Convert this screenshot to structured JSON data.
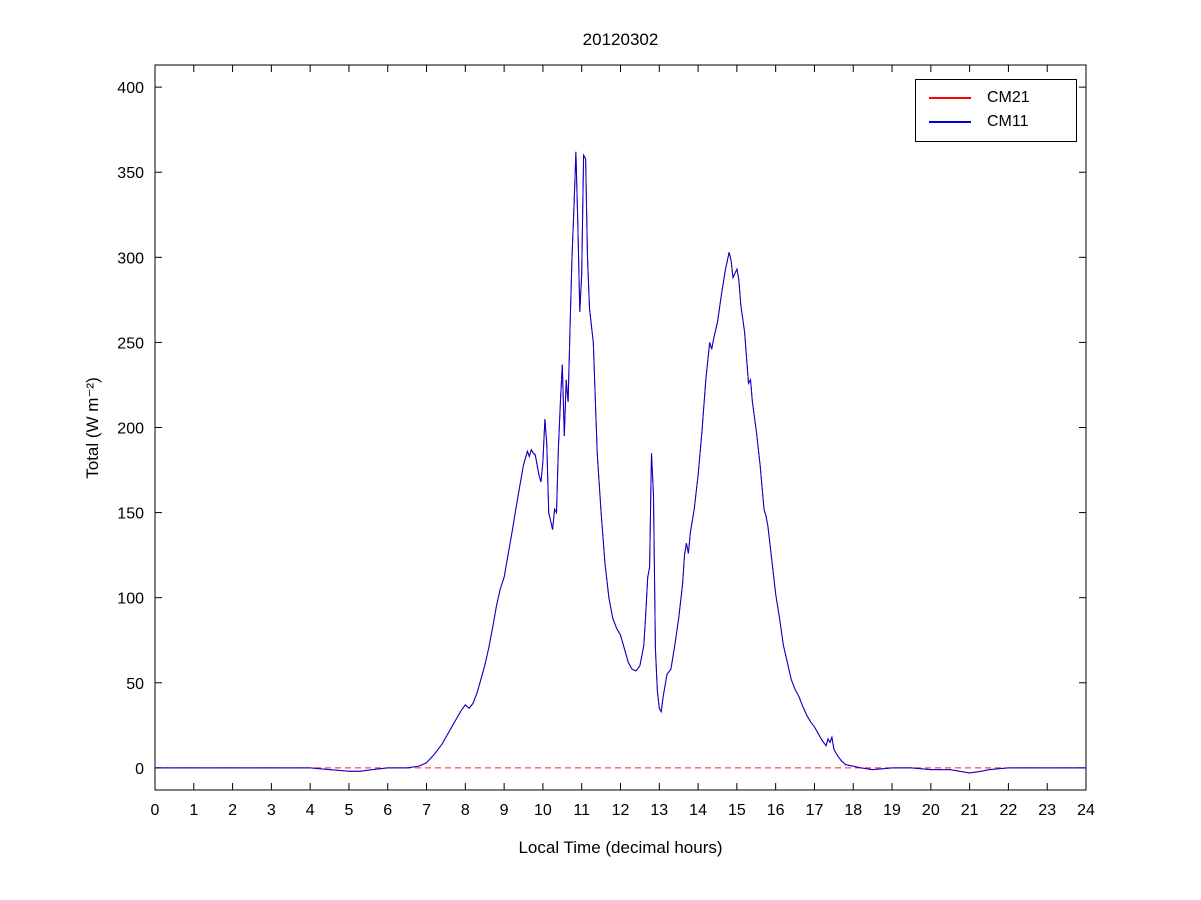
{
  "chart_data": {
    "type": "line",
    "title": "20120302",
    "xlabel": "Local Time (decimal hours)",
    "ylabel": "Total (W m⁻²)",
    "xlim": [
      0,
      24
    ],
    "ylim": [
      -13,
      413
    ],
    "xticks": [
      0,
      1,
      2,
      3,
      4,
      5,
      6,
      7,
      8,
      9,
      10,
      11,
      12,
      13,
      14,
      15,
      16,
      17,
      18,
      19,
      20,
      21,
      22,
      23,
      24
    ],
    "yticks": [
      0,
      50,
      100,
      150,
      200,
      250,
      300,
      350,
      400
    ],
    "grid": false,
    "legend_position": "top-right",
    "legend_entries": [
      "CM21",
      "CM11"
    ],
    "series": [
      {
        "name": "zero-reference",
        "color": "#ff2020",
        "dash": "6,4",
        "in_legend": false,
        "points": [
          [
            0,
            0
          ],
          [
            24,
            0
          ]
        ]
      },
      {
        "name": "CM21",
        "color": "#ff0000",
        "dash": "none",
        "in_legend": true,
        "same_as": "CM11"
      },
      {
        "name": "CM11",
        "color": "#0000e0",
        "dash": "none",
        "in_legend": true,
        "points": [
          [
            0,
            0
          ],
          [
            0.5,
            0
          ],
          [
            1,
            0
          ],
          [
            1.5,
            0
          ],
          [
            2,
            0
          ],
          [
            2.5,
            0
          ],
          [
            3,
            0
          ],
          [
            3.5,
            0
          ],
          [
            4,
            0
          ],
          [
            4.5,
            -1
          ],
          [
            5,
            -2
          ],
          [
            5.3,
            -2
          ],
          [
            5.6,
            -1
          ],
          [
            6,
            0
          ],
          [
            6.5,
            0
          ],
          [
            6.8,
            1
          ],
          [
            7,
            3
          ],
          [
            7.2,
            8
          ],
          [
            7.4,
            14
          ],
          [
            7.6,
            22
          ],
          [
            7.8,
            30
          ],
          [
            7.9,
            34
          ],
          [
            8.0,
            37
          ],
          [
            8.1,
            35
          ],
          [
            8.2,
            38
          ],
          [
            8.3,
            44
          ],
          [
            8.4,
            52
          ],
          [
            8.5,
            60
          ],
          [
            8.6,
            70
          ],
          [
            8.7,
            82
          ],
          [
            8.8,
            95
          ],
          [
            8.9,
            105
          ],
          [
            9.0,
            112
          ],
          [
            9.1,
            125
          ],
          [
            9.2,
            138
          ],
          [
            9.3,
            152
          ],
          [
            9.4,
            165
          ],
          [
            9.5,
            178
          ],
          [
            9.6,
            186
          ],
          [
            9.65,
            183
          ],
          [
            9.7,
            187
          ],
          [
            9.75,
            185
          ],
          [
            9.8,
            184
          ],
          [
            9.85,
            178
          ],
          [
            9.9,
            172
          ],
          [
            9.95,
            168
          ],
          [
            10.0,
            180
          ],
          [
            10.05,
            205
          ],
          [
            10.1,
            190
          ],
          [
            10.15,
            150
          ],
          [
            10.2,
            145
          ],
          [
            10.25,
            140
          ],
          [
            10.3,
            152
          ],
          [
            10.35,
            150
          ],
          [
            10.4,
            188
          ],
          [
            10.45,
            215
          ],
          [
            10.5,
            237
          ],
          [
            10.55,
            195
          ],
          [
            10.6,
            228
          ],
          [
            10.65,
            215
          ],
          [
            10.7,
            260
          ],
          [
            10.75,
            300
          ],
          [
            10.8,
            330
          ],
          [
            10.85,
            362
          ],
          [
            10.9,
            320
          ],
          [
            10.95,
            268
          ],
          [
            11.0,
            290
          ],
          [
            11.05,
            360
          ],
          [
            11.1,
            358
          ],
          [
            11.15,
            300
          ],
          [
            11.2,
            270
          ],
          [
            11.3,
            250
          ],
          [
            11.4,
            185
          ],
          [
            11.5,
            150
          ],
          [
            11.6,
            120
          ],
          [
            11.7,
            100
          ],
          [
            11.8,
            88
          ],
          [
            11.9,
            82
          ],
          [
            12.0,
            78
          ],
          [
            12.1,
            70
          ],
          [
            12.2,
            62
          ],
          [
            12.3,
            58
          ],
          [
            12.4,
            57
          ],
          [
            12.5,
            60
          ],
          [
            12.6,
            72
          ],
          [
            12.65,
            90
          ],
          [
            12.7,
            112
          ],
          [
            12.75,
            118
          ],
          [
            12.8,
            185
          ],
          [
            12.85,
            160
          ],
          [
            12.9,
            70
          ],
          [
            12.95,
            45
          ],
          [
            13.0,
            35
          ],
          [
            13.05,
            33
          ],
          [
            13.1,
            42
          ],
          [
            13.2,
            55
          ],
          [
            13.3,
            58
          ],
          [
            13.4,
            72
          ],
          [
            13.5,
            88
          ],
          [
            13.6,
            108
          ],
          [
            13.65,
            125
          ],
          [
            13.7,
            132
          ],
          [
            13.75,
            126
          ],
          [
            13.8,
            138
          ],
          [
            13.9,
            152
          ],
          [
            14.0,
            172
          ],
          [
            14.1,
            198
          ],
          [
            14.2,
            228
          ],
          [
            14.3,
            250
          ],
          [
            14.35,
            246
          ],
          [
            14.4,
            252
          ],
          [
            14.5,
            262
          ],
          [
            14.6,
            278
          ],
          [
            14.7,
            292
          ],
          [
            14.8,
            303
          ],
          [
            14.85,
            298
          ],
          [
            14.9,
            288
          ],
          [
            15.0,
            293
          ],
          [
            15.05,
            287
          ],
          [
            15.1,
            272
          ],
          [
            15.2,
            256
          ],
          [
            15.3,
            226
          ],
          [
            15.35,
            228
          ],
          [
            15.4,
            215
          ],
          [
            15.5,
            198
          ],
          [
            15.6,
            178
          ],
          [
            15.7,
            152
          ],
          [
            15.75,
            148
          ],
          [
            15.8,
            142
          ],
          [
            15.9,
            122
          ],
          [
            16.0,
            102
          ],
          [
            16.1,
            88
          ],
          [
            16.2,
            72
          ],
          [
            16.3,
            62
          ],
          [
            16.4,
            52
          ],
          [
            16.5,
            46
          ],
          [
            16.6,
            42
          ],
          [
            16.7,
            36
          ],
          [
            16.8,
            31
          ],
          [
            16.9,
            27
          ],
          [
            17.0,
            24
          ],
          [
            17.1,
            20
          ],
          [
            17.2,
            16
          ],
          [
            17.3,
            13
          ],
          [
            17.35,
            17
          ],
          [
            17.4,
            15
          ],
          [
            17.45,
            18
          ],
          [
            17.5,
            11
          ],
          [
            17.6,
            7
          ],
          [
            17.7,
            4
          ],
          [
            17.8,
            2
          ],
          [
            18.0,
            1
          ],
          [
            18.2,
            0
          ],
          [
            18.5,
            -1
          ],
          [
            19,
            0
          ],
          [
            19.5,
            0
          ],
          [
            20,
            -1
          ],
          [
            20.5,
            -1
          ],
          [
            21,
            -3
          ],
          [
            21.3,
            -2
          ],
          [
            21.5,
            -1
          ],
          [
            22,
            0
          ],
          [
            22.5,
            0
          ],
          [
            23,
            0
          ],
          [
            23.5,
            0
          ],
          [
            24,
            0
          ]
        ]
      }
    ]
  }
}
